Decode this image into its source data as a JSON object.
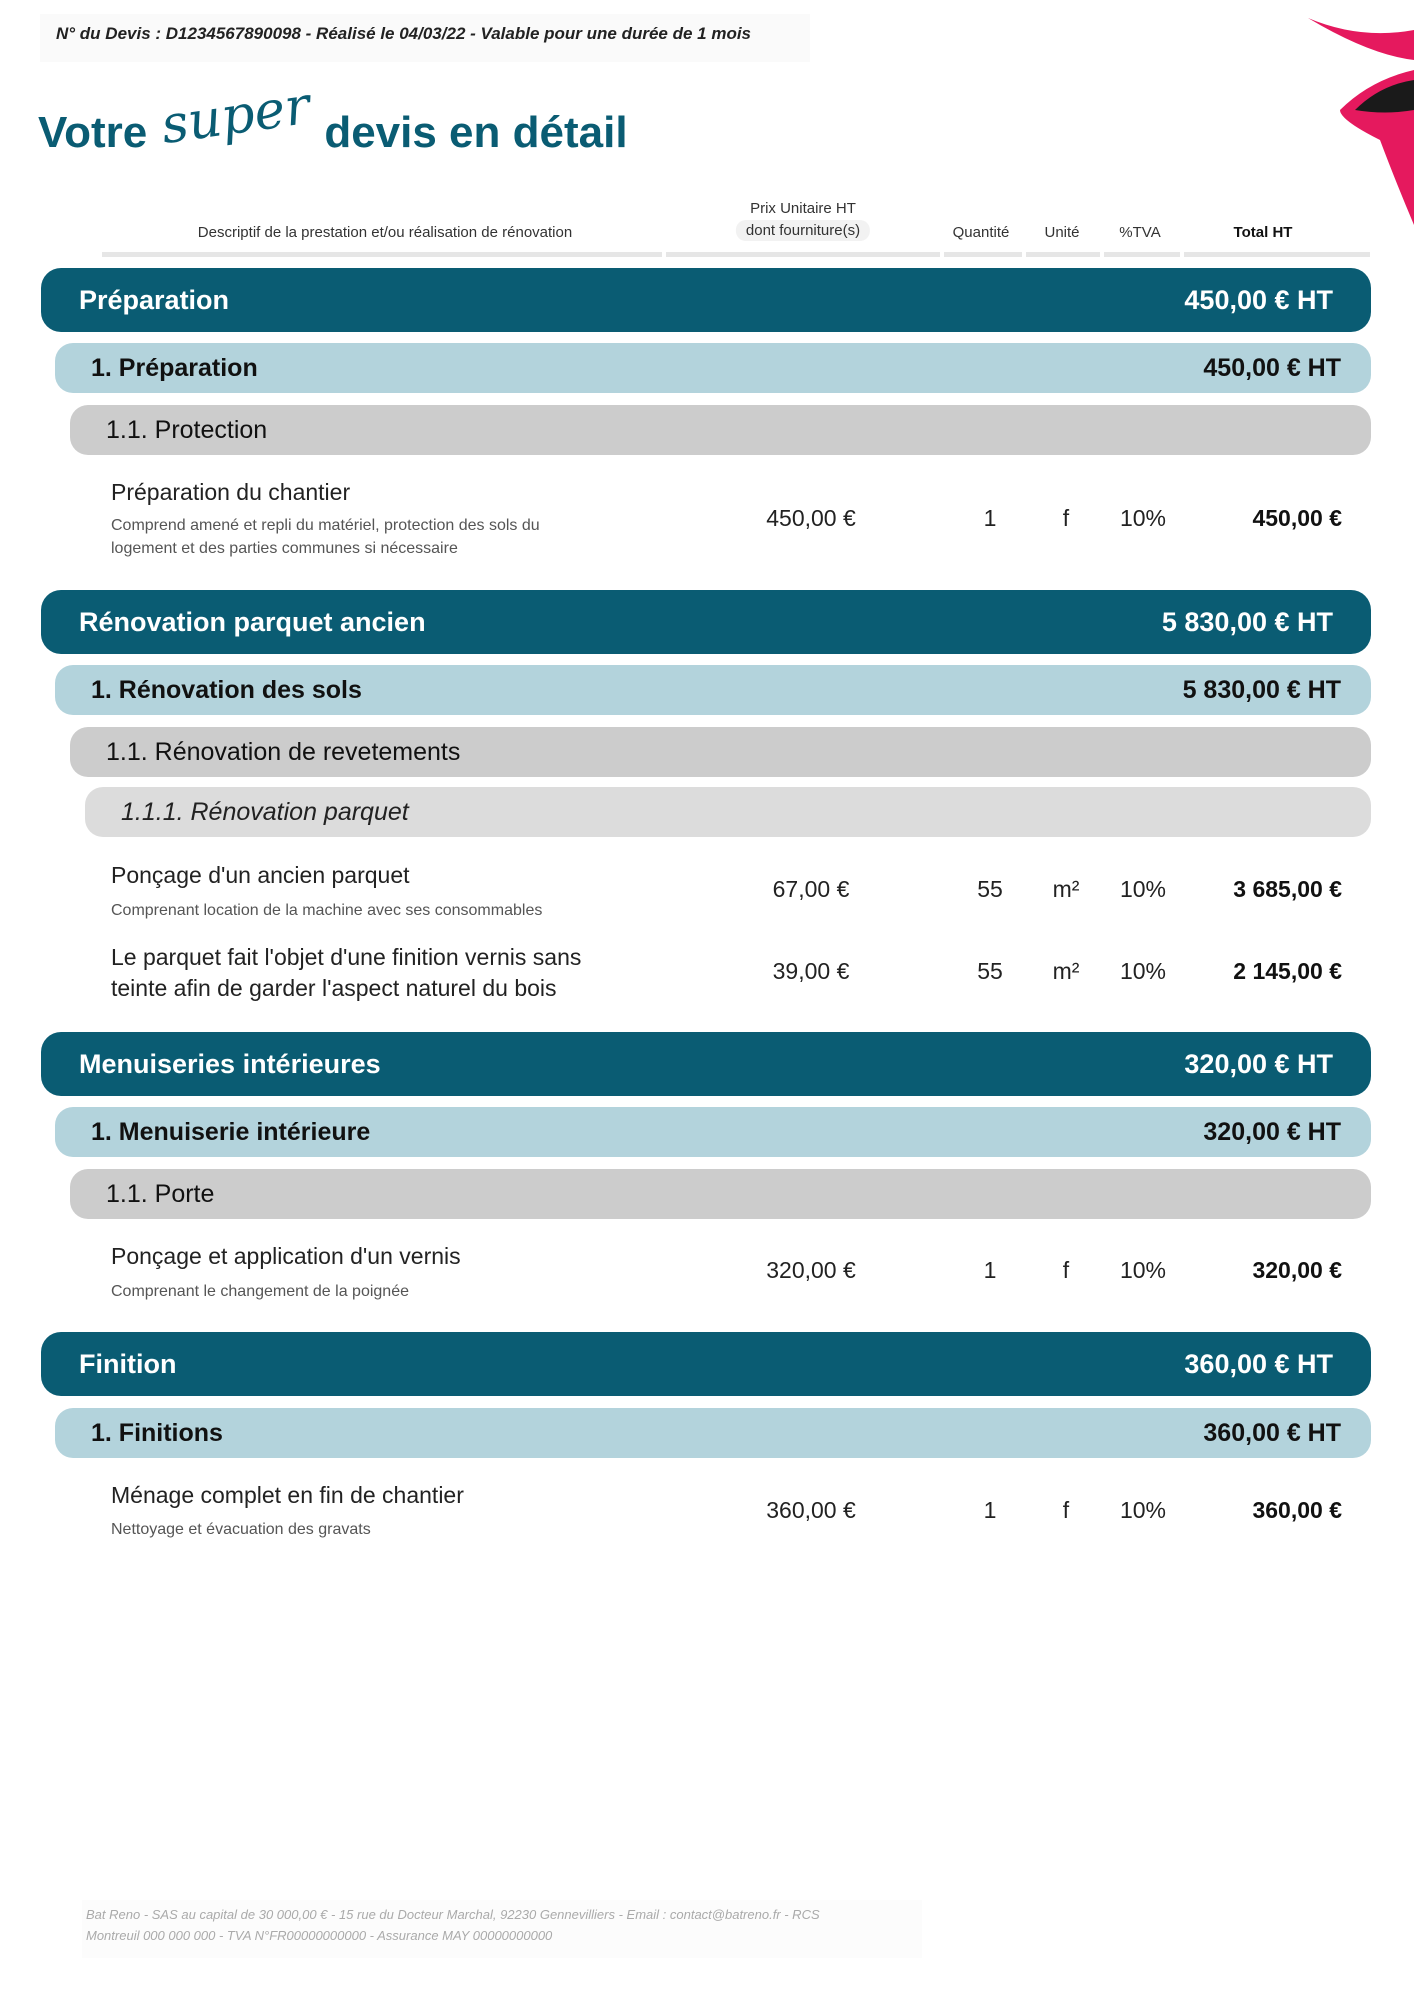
{
  "header": {
    "quote_info": "N° du Devis : D1234567890098 - Réalisé le 04/03/22 - Valable pour une durée de 1 mois"
  },
  "title": {
    "before": "Votre",
    "script": "super",
    "after": "devis en détail"
  },
  "colors": {
    "primary": "#0a5c73",
    "light": "#b3d3dc",
    "gray": "#cccccc",
    "accent": "#e5195e"
  },
  "columns": {
    "description": "Descriptif de la prestation et/ou réalisation de rénovation",
    "price": "Prix Unitaire HT",
    "price_sub": "dont fourniture(s)",
    "quantity": "Quantité",
    "unit": "Unité",
    "vat": "%TVA",
    "total": "Total HT"
  },
  "sections": [
    {
      "title": "Préparation",
      "total": "450,00 € HT",
      "sub": {
        "title": "1. Préparation",
        "total": "450,00 € HT"
      },
      "subsub": "1.1. Protection",
      "items": [
        {
          "title": "Préparation du chantier",
          "desc1": "Comprend amené et repli du matériel, protection des sols du",
          "desc2": "logement et des parties communes si nécessaire",
          "price": "450,00 €",
          "qty": "1",
          "unit": "f",
          "vat": "10%",
          "total": "450,00 €"
        }
      ]
    },
    {
      "title": "Rénovation parquet ancien",
      "total": "5 830,00 € HT",
      "sub": {
        "title": "1. Rénovation des sols",
        "total": "5 830,00 € HT"
      },
      "subsub": "1.1. Rénovation de revetements",
      "subsubsub": "1.1.1. Rénovation parquet",
      "items": [
        {
          "title": "Ponçage d'un ancien parquet",
          "desc1": "Comprenant location de la machine avec ses consommables",
          "price": "67,00 €",
          "qty": "55",
          "unit": "m²",
          "vat": "10%",
          "total": "3 685,00 €"
        },
        {
          "title": "Le parquet fait l'objet d'une finition vernis sans",
          "title2": "teinte afin de garder l'aspect naturel du bois",
          "price": "39,00 €",
          "qty": "55",
          "unit": "m²",
          "vat": "10%",
          "total": "2 145,00 €"
        }
      ]
    },
    {
      "title": "Menuiseries intérieures",
      "total": "320,00 € HT",
      "sub": {
        "title": "1. Menuiserie intérieure",
        "total": "320,00 € HT"
      },
      "subsub": "1.1. Porte",
      "items": [
        {
          "title": "Ponçage et application d'un vernis",
          "desc1": "Comprenant le changement de la poignée",
          "price": "320,00 €",
          "qty": "1",
          "unit": "f",
          "vat": "10%",
          "total": "320,00 €"
        }
      ]
    },
    {
      "title": "Finition",
      "total": "360,00 € HT",
      "sub": {
        "title": "1. Finitions",
        "total": "360,00 € HT"
      },
      "items": [
        {
          "title": "Ménage complet en fin de chantier",
          "desc1": "Nettoyage et évacuation des gravats",
          "price": "360,00 €",
          "qty": "1",
          "unit": "f",
          "vat": "10%",
          "total": "360,00 €"
        }
      ]
    }
  ],
  "footer": {
    "line1": "Bat Reno - SAS au capital de 30 000,00 € - 15 rue du Docteur Marchal, 92230 Gennevilliers - Email : contact@batreno.fr - RCS",
    "line2": "Montreuil 000 000 000 - TVA N°FR00000000000 - Assurance MAY 00000000000"
  }
}
